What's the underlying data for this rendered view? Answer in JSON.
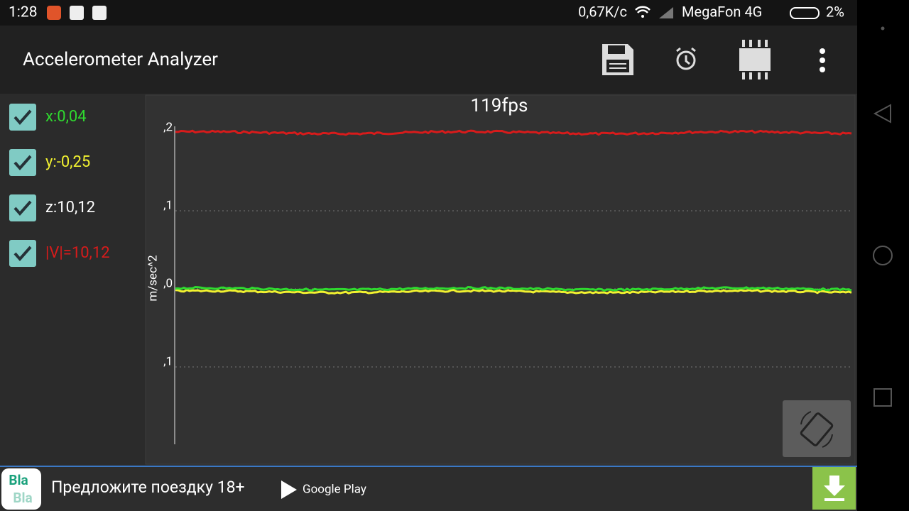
{
  "status_bar": {
    "time": "1:28",
    "speed": "0,67K/c",
    "carrier": "MegaFon 4G",
    "battery": "2%"
  },
  "app_bar": {
    "title": "Accelerometer Analyzer"
  },
  "legend": [
    {
      "label": "x:0,04",
      "color": "#2fd92f",
      "checked": true
    },
    {
      "label": "y:-0,25",
      "color": "#f2f230",
      "checked": true
    },
    {
      "label": "z:10,12",
      "color": "#ffffff",
      "checked": true
    },
    {
      "label": "|V|=10,12",
      "color": "#d81b1b",
      "checked": true
    }
  ],
  "chart": {
    "fps": "119fps",
    "y_label": "m/sec^2",
    "tick_labels": [
      ",2",
      ",1",
      ",0",
      ",1"
    ]
  },
  "ad": {
    "logo": [
      "Bla",
      "Bla"
    ],
    "text": "Предложите поездку 18+",
    "store": "Google Play"
  }
}
